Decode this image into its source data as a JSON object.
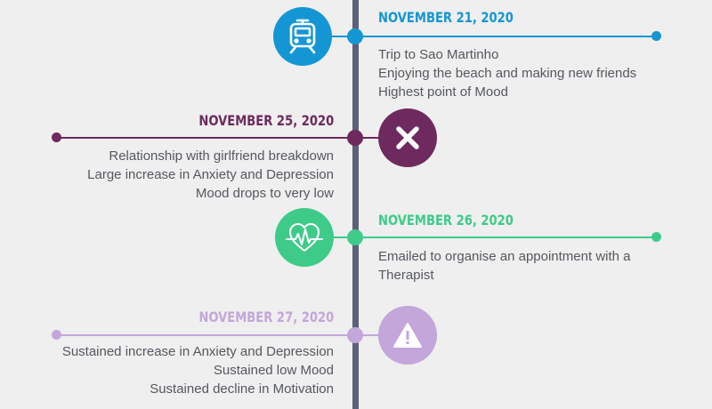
{
  "colors": {
    "axis": "#5c6079",
    "blue": "#1596d4",
    "purple": "#6e2a5e",
    "green": "#3ecb8a",
    "lavender": "#c3a6da"
  },
  "events": [
    {
      "date": "NOVEMBER 21, 2020",
      "icon": "train-icon",
      "lines": [
        "Trip to Sao Martinho",
        "Enjoying the beach and making new friends",
        "Highest point of Mood"
      ]
    },
    {
      "date": "NOVEMBER 25, 2020",
      "icon": "close-x-icon",
      "lines": [
        "Relationship with girlfriend breakdown",
        "Large increase in Anxiety and Depression",
        "Mood drops to very low"
      ]
    },
    {
      "date": "NOVEMBER 26, 2020",
      "icon": "heartbeat-icon",
      "lines": [
        "Emailed to organise an appointment with a",
        "Therapist"
      ]
    },
    {
      "date": "NOVEMBER 27, 2020",
      "icon": "warning-icon",
      "lines": [
        "Sustained increase in Anxiety and Depression",
        "Sustained low Mood",
        "Sustained decline in Motivation"
      ]
    }
  ]
}
